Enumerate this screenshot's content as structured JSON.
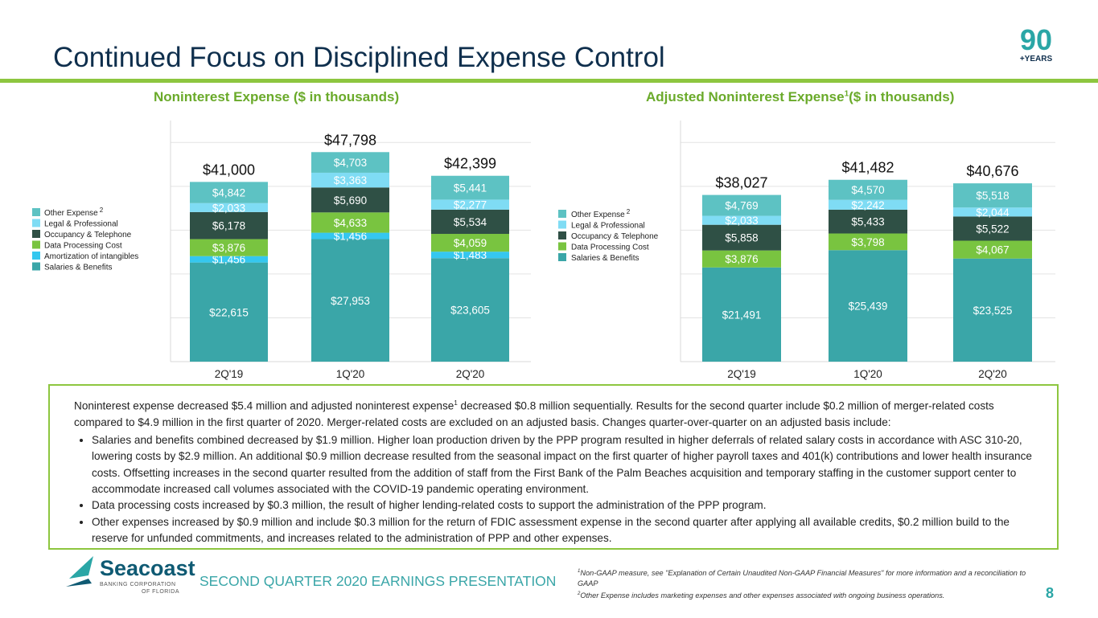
{
  "slide": {
    "title": "Continued Focus on Disciplined Expense Control",
    "badge_number": "90",
    "badge_text": "+YEARS",
    "page_number": "8",
    "footer_label": "SECOND QUARTER 2020 EARNINGS PRESENTATION"
  },
  "colors": {
    "Salaries & Benefits": "#3aa6a8",
    "Amortization of intangibles": "#35c7ef",
    "Data Processing Cost": "#79c440",
    "Occupancy & Telephone": "#2f5045",
    "Legal & Professional": "#7fdcf4",
    "Other Expense": "#5dc2c3"
  },
  "chart_data": [
    {
      "type": "bar",
      "stacked": true,
      "title": "Noninterest Expense ($ in thousands)",
      "categories": [
        "2Q'19",
        "1Q'20",
        "2Q'20"
      ],
      "totals": [
        "$41,000",
        "$47,798",
        "$42,399"
      ],
      "legend": [
        "Other Expense",
        "Legal & Professional",
        "Occupancy & Telephone",
        "Data Processing Cost",
        "Amortization of intangibles",
        "Salaries & Benefits"
      ],
      "legend_sup": {
        "Other Expense": "2"
      },
      "series": [
        {
          "name": "Salaries & Benefits",
          "values": [
            22615,
            27953,
            23605
          ],
          "labels": [
            "$22,615",
            "$27,953",
            "$23,605"
          ]
        },
        {
          "name": "Amortization of intangibles",
          "values": [
            1456,
            1456,
            1483
          ],
          "labels": [
            "$1,456",
            "$1,456",
            "$1,483"
          ]
        },
        {
          "name": "Data Processing Cost",
          "values": [
            3876,
            4633,
            4059
          ],
          "labels": [
            "$3,876",
            "$4,633",
            "$4,059"
          ]
        },
        {
          "name": "Occupancy & Telephone",
          "values": [
            6178,
            5690,
            5534
          ],
          "labels": [
            "$6,178",
            "$5,690",
            "$5,534"
          ]
        },
        {
          "name": "Legal & Professional",
          "values": [
            2033,
            3363,
            2277
          ],
          "labels": [
            "$2,033",
            "$3,363",
            "$2,277"
          ]
        },
        {
          "name": "Other Expense",
          "values": [
            4842,
            4703,
            5441
          ],
          "labels": [
            "$4,842",
            "$4,703",
            "$5,441"
          ]
        }
      ],
      "ylim": [
        0,
        55000
      ]
    },
    {
      "type": "bar",
      "stacked": true,
      "title": "Adjusted Noninterest Expense",
      "title_sup": "1",
      "title_suffix": "($ in thousands)",
      "categories": [
        "2Q'19",
        "1Q'20",
        "2Q'20"
      ],
      "totals": [
        "$38,027",
        "$41,482",
        "$40,676"
      ],
      "legend": [
        "Other Expense",
        "Legal & Professional",
        "Occupancy & Telephone",
        "Data Processing Cost",
        "Salaries & Benefits"
      ],
      "legend_sup": {
        "Other Expense": "2"
      },
      "series": [
        {
          "name": "Salaries & Benefits",
          "values": [
            21491,
            25439,
            23525
          ],
          "labels": [
            "$21,491",
            "$25,439",
            "$23,525"
          ]
        },
        {
          "name": "Data Processing Cost",
          "values": [
            3876,
            3798,
            4067
          ],
          "labels": [
            "$3,876",
            "$3,798",
            "$4,067"
          ]
        },
        {
          "name": "Occupancy & Telephone",
          "values": [
            5858,
            5433,
            5522
          ],
          "labels": [
            "$5,858",
            "$5,433",
            "$5,522"
          ]
        },
        {
          "name": "Legal & Professional",
          "values": [
            2033,
            2242,
            2044
          ],
          "labels": [
            "$2,033",
            "$2,242",
            "$2,044"
          ]
        },
        {
          "name": "Other Expense",
          "values": [
            4769,
            4570,
            5518
          ],
          "labels": [
            "$4,769",
            "$4,570",
            "$5,518"
          ]
        }
      ],
      "ylim": [
        0,
        55000
      ]
    }
  ],
  "callout": {
    "intro_a": "Noninterest expense decreased $5.4 million and adjusted noninterest expense",
    "intro_sup": "1",
    "intro_b": " decreased $0.8 million sequentially. Results for the second quarter include $0.2 million of merger-related costs compared to $4.9 million in the first quarter of 2020.  Merger-related costs are excluded on an adjusted basis. Changes quarter-over-quarter on an adjusted basis include:",
    "bullets": [
      "Salaries and benefits combined decreased by $1.9 million. Higher loan production driven by the PPP program resulted in higher deferrals of related salary costs in accordance with ASC 310-20, lowering costs by $2.9 million. An additional $0.9 million decrease resulted from the seasonal impact on the first quarter of higher payroll taxes and 401(k) contributions and lower health insurance costs. Offsetting increases in the second quarter resulted from the addition of staff from the First Bank of the Palm Beaches acquisition and temporary staffing in the customer support center to accommodate increased call volumes associated with the COVID-19 pandemic operating environment.",
      "Data processing costs increased by $0.3 million, the result of higher lending-related costs to support the administration of the PPP program.",
      "Other expenses increased by $0.9 million and include $0.3 million for the return of FDIC assessment expense in the second quarter after applying all available credits, $0.2 million build to the reserve for unfunded commitments, and increases related to the administration of PPP and other expenses."
    ]
  },
  "logo": {
    "name": "Seacoast",
    "line1": "BANKING CORPORATION",
    "line2": "OF FLORIDA"
  },
  "footnotes": {
    "note1_sup": "1",
    "note1": "Non-GAAP measure, see \"Explanation of Certain Unaudited Non-GAAP Financial Measures\" for more information and a reconciliation to GAAP",
    "note2_sup": "2",
    "note2": "Other Expense includes marketing expenses and other expenses associated with ongoing business operations."
  }
}
